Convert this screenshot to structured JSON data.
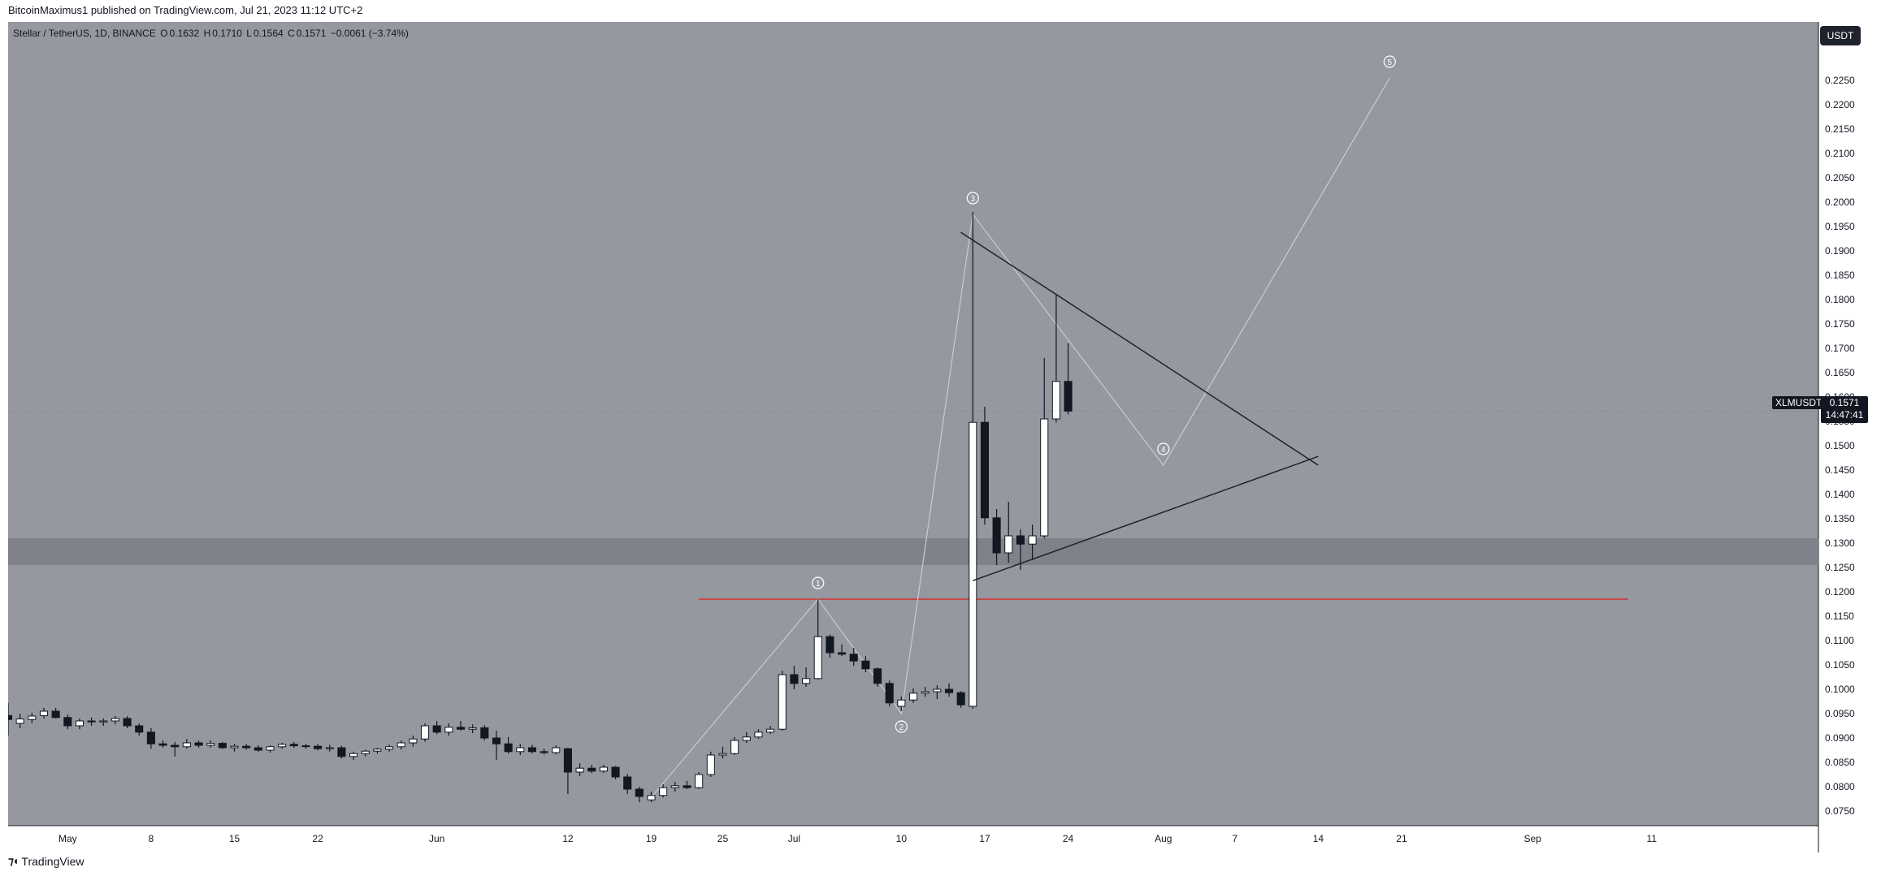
{
  "publisher": "BitcoinMaximus1 published on TradingView.com, Jul 21, 2023 11:12 UTC+2",
  "legend": {
    "pair": "Stellar / TetherUS, 1D, BINANCE",
    "o_label": "O",
    "o": "0.1632",
    "h_label": "H",
    "h": "0.1710",
    "l_label": "L",
    "l": "0.1564",
    "c_label": "C",
    "c": "0.1571",
    "change": "−0.0061 (−3.74%)"
  },
  "currency": "USDT",
  "symbol": "XLMUSDT",
  "last_price": "0.1571",
  "countdown": "14:47:41",
  "footer": "TradingView",
  "colors": {
    "plot_bg": "#95989f",
    "zone": "#7f828a",
    "resistance": "#d32f2f",
    "up_candle": "#ffffff",
    "down_candle": "#131722",
    "wave_line": "#c9cbd0",
    "triangle": "#1e222d"
  },
  "chart_data": {
    "type": "candlestick",
    "title": "",
    "xlabel": "",
    "ylabel": "",
    "x_ticks": [
      {
        "label": "May",
        "date": "2023-05-01"
      },
      {
        "label": "8",
        "date": "2023-05-08"
      },
      {
        "label": "15",
        "date": "2023-05-15"
      },
      {
        "label": "22",
        "date": "2023-05-22"
      },
      {
        "label": "Jun",
        "date": "2023-06-01"
      },
      {
        "label": "12",
        "date": "2023-06-12"
      },
      {
        "label": "19",
        "date": "2023-06-19"
      },
      {
        "label": "25",
        "date": "2023-06-25"
      },
      {
        "label": "Jul",
        "date": "2023-07-01"
      },
      {
        "label": "10",
        "date": "2023-07-10"
      },
      {
        "label": "17",
        "date": "2023-07-17"
      },
      {
        "label": "24",
        "date": "2023-07-24"
      },
      {
        "label": "Aug",
        "date": "2023-08-01"
      },
      {
        "label": "7",
        "date": "2023-08-07"
      },
      {
        "label": "14",
        "date": "2023-08-14"
      },
      {
        "label": "21",
        "date": "2023-08-21"
      },
      {
        "label": "Sep",
        "date": "2023-09-01"
      },
      {
        "label": "11",
        "date": "2023-09-11"
      }
    ],
    "xlim": [
      "2023-04-26",
      "2023-09-25"
    ],
    "ylim": [
      0.072,
      0.237
    ],
    "y_ticks": [
      "0.0750",
      "0.0800",
      "0.0850",
      "0.0900",
      "0.0950",
      "0.1000",
      "0.1050",
      "0.1100",
      "0.1150",
      "0.1200",
      "0.1250",
      "0.1300",
      "0.1350",
      "0.1400",
      "0.1450",
      "0.1500",
      "0.1550",
      "0.1600",
      "0.1650",
      "0.1700",
      "0.1750",
      "0.1800",
      "0.1850",
      "0.1900",
      "0.1950",
      "0.2000",
      "0.2050",
      "0.2100",
      "0.2150",
      "0.2200",
      "0.2250"
    ],
    "candles": [
      {
        "date": "2023-04-26",
        "o": 0.0946,
        "h": 0.0972,
        "l": 0.0905,
        "c": 0.0938
      },
      {
        "date": "2023-04-27",
        "o": 0.093,
        "h": 0.095,
        "l": 0.092,
        "c": 0.0939
      },
      {
        "date": "2023-04-28",
        "o": 0.0938,
        "h": 0.0952,
        "l": 0.093,
        "c": 0.0945
      },
      {
        "date": "2023-04-29",
        "o": 0.0946,
        "h": 0.0962,
        "l": 0.094,
        "c": 0.0955
      },
      {
        "date": "2023-04-30",
        "o": 0.0955,
        "h": 0.0962,
        "l": 0.094,
        "c": 0.0942
      },
      {
        "date": "2023-05-01",
        "o": 0.0942,
        "h": 0.0948,
        "l": 0.0918,
        "c": 0.0925
      },
      {
        "date": "2023-05-02",
        "o": 0.0925,
        "h": 0.094,
        "l": 0.0918,
        "c": 0.0935
      },
      {
        "date": "2023-05-03",
        "o": 0.0935,
        "h": 0.0942,
        "l": 0.0925,
        "c": 0.0933
      },
      {
        "date": "2023-05-04",
        "o": 0.0933,
        "h": 0.094,
        "l": 0.0925,
        "c": 0.0935
      },
      {
        "date": "2023-05-05",
        "o": 0.0935,
        "h": 0.0945,
        "l": 0.0928,
        "c": 0.094
      },
      {
        "date": "2023-05-06",
        "o": 0.094,
        "h": 0.0945,
        "l": 0.092,
        "c": 0.0925
      },
      {
        "date": "2023-05-07",
        "o": 0.0925,
        "h": 0.093,
        "l": 0.0905,
        "c": 0.0912
      },
      {
        "date": "2023-05-08",
        "o": 0.0912,
        "h": 0.092,
        "l": 0.0878,
        "c": 0.0888
      },
      {
        "date": "2023-05-09",
        "o": 0.0888,
        "h": 0.0895,
        "l": 0.088,
        "c": 0.0885
      },
      {
        "date": "2023-05-10",
        "o": 0.0885,
        "h": 0.0892,
        "l": 0.0862,
        "c": 0.0882
      },
      {
        "date": "2023-05-11",
        "o": 0.0882,
        "h": 0.0898,
        "l": 0.0878,
        "c": 0.089
      },
      {
        "date": "2023-05-12",
        "o": 0.089,
        "h": 0.0895,
        "l": 0.088,
        "c": 0.0885
      },
      {
        "date": "2023-05-13",
        "o": 0.0885,
        "h": 0.0895,
        "l": 0.088,
        "c": 0.0889
      },
      {
        "date": "2023-05-14",
        "o": 0.0889,
        "h": 0.0892,
        "l": 0.0878,
        "c": 0.088
      },
      {
        "date": "2023-05-15",
        "o": 0.088,
        "h": 0.0888,
        "l": 0.0872,
        "c": 0.0883
      },
      {
        "date": "2023-05-16",
        "o": 0.0883,
        "h": 0.0888,
        "l": 0.0876,
        "c": 0.088
      },
      {
        "date": "2023-05-17",
        "o": 0.088,
        "h": 0.0885,
        "l": 0.0872,
        "c": 0.0875
      },
      {
        "date": "2023-05-18",
        "o": 0.0875,
        "h": 0.0885,
        "l": 0.087,
        "c": 0.0882
      },
      {
        "date": "2023-05-19",
        "o": 0.0882,
        "h": 0.089,
        "l": 0.0878,
        "c": 0.0887
      },
      {
        "date": "2023-05-20",
        "o": 0.0887,
        "h": 0.0892,
        "l": 0.088,
        "c": 0.0884
      },
      {
        "date": "2023-05-21",
        "o": 0.0884,
        "h": 0.0888,
        "l": 0.0878,
        "c": 0.0883
      },
      {
        "date": "2023-05-22",
        "o": 0.0883,
        "h": 0.0888,
        "l": 0.0875,
        "c": 0.0878
      },
      {
        "date": "2023-05-23",
        "o": 0.0878,
        "h": 0.0886,
        "l": 0.0872,
        "c": 0.088
      },
      {
        "date": "2023-05-24",
        "o": 0.088,
        "h": 0.0884,
        "l": 0.0858,
        "c": 0.0862
      },
      {
        "date": "2023-05-25",
        "o": 0.0862,
        "h": 0.0872,
        "l": 0.0855,
        "c": 0.0868
      },
      {
        "date": "2023-05-26",
        "o": 0.0868,
        "h": 0.0876,
        "l": 0.0862,
        "c": 0.0873
      },
      {
        "date": "2023-05-27",
        "o": 0.0873,
        "h": 0.088,
        "l": 0.0868,
        "c": 0.0877
      },
      {
        "date": "2023-05-28",
        "o": 0.0877,
        "h": 0.0886,
        "l": 0.0872,
        "c": 0.0882
      },
      {
        "date": "2023-05-29",
        "o": 0.0882,
        "h": 0.0895,
        "l": 0.0876,
        "c": 0.089
      },
      {
        "date": "2023-05-30",
        "o": 0.089,
        "h": 0.0905,
        "l": 0.0882,
        "c": 0.0898
      },
      {
        "date": "2023-05-31",
        "o": 0.0898,
        "h": 0.093,
        "l": 0.0892,
        "c": 0.0925
      },
      {
        "date": "2023-06-01",
        "o": 0.0925,
        "h": 0.0935,
        "l": 0.0908,
        "c": 0.0912
      },
      {
        "date": "2023-06-02",
        "o": 0.0912,
        "h": 0.093,
        "l": 0.0905,
        "c": 0.0922
      },
      {
        "date": "2023-06-03",
        "o": 0.0922,
        "h": 0.0935,
        "l": 0.0915,
        "c": 0.0918
      },
      {
        "date": "2023-06-04",
        "o": 0.0918,
        "h": 0.0928,
        "l": 0.091,
        "c": 0.0921
      },
      {
        "date": "2023-06-05",
        "o": 0.0921,
        "h": 0.0926,
        "l": 0.0895,
        "c": 0.09
      },
      {
        "date": "2023-06-06",
        "o": 0.09,
        "h": 0.0915,
        "l": 0.0855,
        "c": 0.0888
      },
      {
        "date": "2023-06-07",
        "o": 0.0888,
        "h": 0.0902,
        "l": 0.0868,
        "c": 0.0872
      },
      {
        "date": "2023-06-08",
        "o": 0.0872,
        "h": 0.0888,
        "l": 0.0865,
        "c": 0.088
      },
      {
        "date": "2023-06-09",
        "o": 0.088,
        "h": 0.0886,
        "l": 0.0868,
        "c": 0.0872
      },
      {
        "date": "2023-06-10",
        "o": 0.0872,
        "h": 0.0878,
        "l": 0.0866,
        "c": 0.087
      },
      {
        "date": "2023-06-11",
        "o": 0.087,
        "h": 0.0885,
        "l": 0.0866,
        "c": 0.088
      },
      {
        "date": "2023-06-12",
        "o": 0.0878,
        "h": 0.088,
        "l": 0.0785,
        "c": 0.083
      },
      {
        "date": "2023-06-13",
        "o": 0.083,
        "h": 0.0848,
        "l": 0.0822,
        "c": 0.0838
      },
      {
        "date": "2023-06-14",
        "o": 0.0838,
        "h": 0.0845,
        "l": 0.0828,
        "c": 0.0832
      },
      {
        "date": "2023-06-15",
        "o": 0.0832,
        "h": 0.0845,
        "l": 0.0828,
        "c": 0.084
      },
      {
        "date": "2023-06-16",
        "o": 0.084,
        "h": 0.0842,
        "l": 0.0815,
        "c": 0.082
      },
      {
        "date": "2023-06-17",
        "o": 0.082,
        "h": 0.0826,
        "l": 0.0785,
        "c": 0.0795
      },
      {
        "date": "2023-06-18",
        "o": 0.0795,
        "h": 0.08,
        "l": 0.0768,
        "c": 0.078
      },
      {
        "date": "2023-06-19",
        "o": 0.0773,
        "h": 0.079,
        "l": 0.0768,
        "c": 0.0782
      },
      {
        "date": "2023-06-20",
        "o": 0.0782,
        "h": 0.0805,
        "l": 0.0778,
        "c": 0.0798
      },
      {
        "date": "2023-06-21",
        "o": 0.0798,
        "h": 0.081,
        "l": 0.079,
        "c": 0.0802
      },
      {
        "date": "2023-06-22",
        "o": 0.0802,
        "h": 0.0812,
        "l": 0.0795,
        "c": 0.0798
      },
      {
        "date": "2023-06-23",
        "o": 0.0798,
        "h": 0.083,
        "l": 0.0795,
        "c": 0.0825
      },
      {
        "date": "2023-06-24",
        "o": 0.0825,
        "h": 0.0872,
        "l": 0.082,
        "c": 0.0865
      },
      {
        "date": "2023-06-25",
        "o": 0.0865,
        "h": 0.0882,
        "l": 0.0858,
        "c": 0.0868
      },
      {
        "date": "2023-06-26",
        "o": 0.0868,
        "h": 0.0902,
        "l": 0.0865,
        "c": 0.0895
      },
      {
        "date": "2023-06-27",
        "o": 0.0895,
        "h": 0.0912,
        "l": 0.089,
        "c": 0.0902
      },
      {
        "date": "2023-06-28",
        "o": 0.0902,
        "h": 0.0918,
        "l": 0.0898,
        "c": 0.0912
      },
      {
        "date": "2023-06-29",
        "o": 0.0912,
        "h": 0.0925,
        "l": 0.0908,
        "c": 0.0918
      },
      {
        "date": "2023-06-30",
        "o": 0.0918,
        "h": 0.1038,
        "l": 0.0915,
        "c": 0.103
      },
      {
        "date": "2023-07-01",
        "o": 0.103,
        "h": 0.1048,
        "l": 0.1,
        "c": 0.1012
      },
      {
        "date": "2023-07-02",
        "o": 0.1012,
        "h": 0.1045,
        "l": 0.1005,
        "c": 0.1022
      },
      {
        "date": "2023-07-03",
        "o": 0.1022,
        "h": 0.1185,
        "l": 0.102,
        "c": 0.1108
      },
      {
        "date": "2023-07-04",
        "o": 0.1108,
        "h": 0.1112,
        "l": 0.1065,
        "c": 0.1075
      },
      {
        "date": "2023-07-05",
        "o": 0.1075,
        "h": 0.1092,
        "l": 0.1068,
        "c": 0.1072
      },
      {
        "date": "2023-07-06",
        "o": 0.1072,
        "h": 0.1085,
        "l": 0.1048,
        "c": 0.1058
      },
      {
        "date": "2023-07-07",
        "o": 0.1058,
        "h": 0.1068,
        "l": 0.1035,
        "c": 0.1042
      },
      {
        "date": "2023-07-08",
        "o": 0.1042,
        "h": 0.1045,
        "l": 0.1005,
        "c": 0.1012
      },
      {
        "date": "2023-07-09",
        "o": 0.1012,
        "h": 0.1018,
        "l": 0.0965,
        "c": 0.0972
      },
      {
        "date": "2023-07-10",
        "o": 0.0965,
        "h": 0.0985,
        "l": 0.0955,
        "c": 0.0978
      },
      {
        "date": "2023-07-11",
        "o": 0.0978,
        "h": 0.1002,
        "l": 0.0972,
        "c": 0.0992
      },
      {
        "date": "2023-07-12",
        "o": 0.0992,
        "h": 0.1005,
        "l": 0.0985,
        "c": 0.0995
      },
      {
        "date": "2023-07-13",
        "o": 0.0995,
        "h": 0.1008,
        "l": 0.098,
        "c": 0.1
      },
      {
        "date": "2023-07-14",
        "o": 0.1,
        "h": 0.1012,
        "l": 0.0985,
        "c": 0.0993
      },
      {
        "date": "2023-07-15",
        "o": 0.0993,
        "h": 0.0996,
        "l": 0.0962,
        "c": 0.0968
      },
      {
        "date": "2023-07-16",
        "o": 0.0965,
        "h": 0.198,
        "l": 0.096,
        "c": 0.1548
      },
      {
        "date": "2023-07-17",
        "o": 0.1548,
        "h": 0.158,
        "l": 0.1338,
        "c": 0.1352
      },
      {
        "date": "2023-07-18",
        "o": 0.1352,
        "h": 0.137,
        "l": 0.1255,
        "c": 0.128
      },
      {
        "date": "2023-07-19",
        "o": 0.128,
        "h": 0.1385,
        "l": 0.126,
        "c": 0.1315
      },
      {
        "date": "2023-07-20",
        "o": 0.1315,
        "h": 0.1328,
        "l": 0.1245,
        "c": 0.1298
      },
      {
        "date": "2023-07-21",
        "o": 0.1298,
        "h": 0.1338,
        "l": 0.1265,
        "c": 0.1315
      },
      {
        "date": "2023-07-22",
        "o": 0.1315,
        "h": 0.168,
        "l": 0.131,
        "c": 0.1555
      },
      {
        "date": "2023-07-23",
        "o": 0.1555,
        "h": 0.181,
        "l": 0.1548,
        "c": 0.1632
      },
      {
        "date": "2023-07-24",
        "o": 0.1632,
        "h": 0.171,
        "l": 0.1564,
        "c": 0.1571
      }
    ],
    "annotations": {
      "support_zone": {
        "low": 0.1255,
        "high": 0.131
      },
      "resistance_line": {
        "price": 0.1185,
        "from": "2023-06-23",
        "to": "2023-09-09"
      },
      "triangle_upper": [
        {
          "date": "2023-07-15",
          "price": 0.1938
        },
        {
          "date": "2023-08-14",
          "price": 0.146
        }
      ],
      "triangle_lower": [
        {
          "date": "2023-07-16",
          "price": 0.1223
        },
        {
          "date": "2023-08-14",
          "price": 0.1478
        }
      ],
      "wave_path": [
        {
          "label": "1",
          "date": "2023-07-03",
          "price": 0.1185
        },
        {
          "label": "2",
          "date": "2023-07-10",
          "price": 0.095
        },
        {
          "label": "3",
          "date": "2023-07-16",
          "price": 0.1975
        },
        {
          "label": "4",
          "date": "2023-08-01",
          "price": 0.146
        },
        {
          "label": "5",
          "date": "2023-08-20",
          "price": 0.2255
        }
      ],
      "wave_start": {
        "date": "2023-06-19",
        "price": 0.0778
      }
    }
  }
}
